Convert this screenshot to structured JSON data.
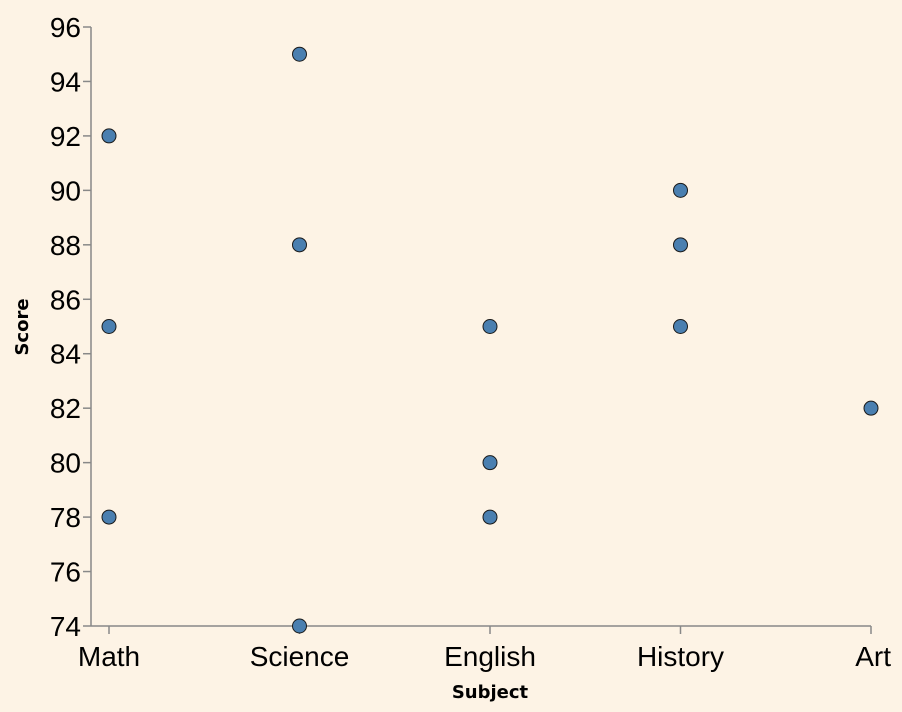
{
  "chart_data": {
    "type": "scatter",
    "title": "",
    "xlabel": "Subject",
    "ylabel": "Score",
    "categories": [
      "Math",
      "Science",
      "English",
      "History",
      "Art"
    ],
    "ylim": [
      74,
      96
    ],
    "yticks": [
      74,
      76,
      78,
      80,
      82,
      84,
      86,
      88,
      90,
      92,
      94,
      96
    ],
    "grid": false,
    "points": [
      {
        "x": "Math",
        "y": 92
      },
      {
        "x": "Math",
        "y": 85
      },
      {
        "x": "Math",
        "y": 78
      },
      {
        "x": "Science",
        "y": 95
      },
      {
        "x": "Science",
        "y": 88
      },
      {
        "x": "Science",
        "y": 74
      },
      {
        "x": "English",
        "y": 85
      },
      {
        "x": "English",
        "y": 80
      },
      {
        "x": "English",
        "y": 78
      },
      {
        "x": "History",
        "y": 90
      },
      {
        "x": "History",
        "y": 88
      },
      {
        "x": "History",
        "y": 85
      },
      {
        "x": "Art",
        "y": 82
      }
    ],
    "colors": {
      "background": "#fdf3e5",
      "point": "#4a7fb0",
      "axis": "#888888"
    }
  }
}
